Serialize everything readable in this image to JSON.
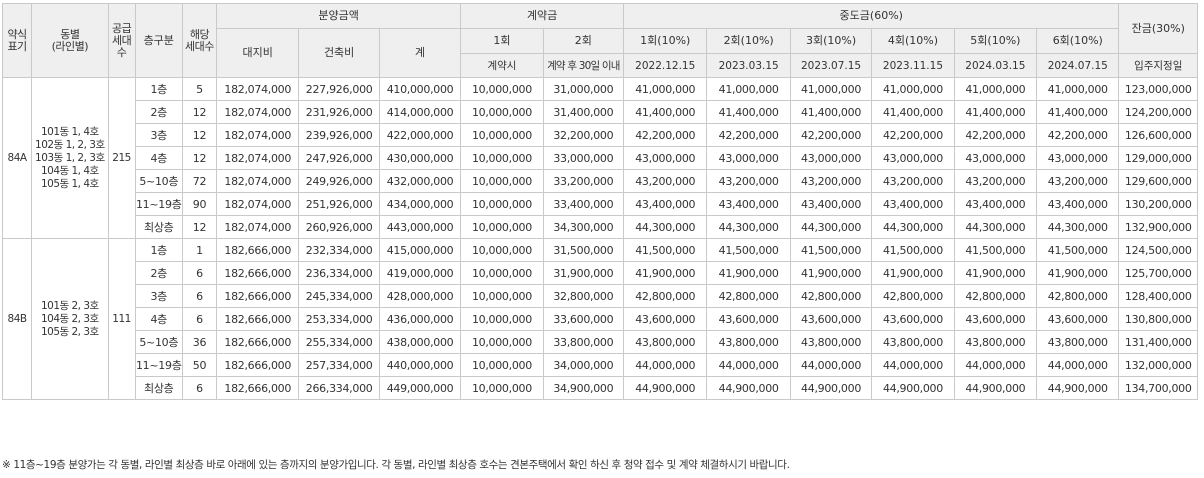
{
  "headers": {
    "type": "약식\n표기",
    "dong": "동별\n(라인별)",
    "supply_units": "공급\n세대\n수",
    "floor": "층구분",
    "applicable_units": "해당\n세대수",
    "sale_price": "분양금액",
    "land": "대지비",
    "building": "건축비",
    "total": "계",
    "contract": "계약금",
    "c1": "1회",
    "c2": "2회",
    "c1_date": "계약시",
    "c2_date": "계약 후 30일 이내",
    "interim": "중도금(60%)",
    "i1": "1회(10%)",
    "i2": "2회(10%)",
    "i3": "3회(10%)",
    "i4": "4회(10%)",
    "i5": "5회(10%)",
    "i6": "6회(10%)",
    "i1_date": "2022.12.15",
    "i2_date": "2023.03.15",
    "i3_date": "2023.07.15",
    "i4_date": "2023.11.15",
    "i5_date": "2024.03.15",
    "i6_date": "2024.07.15",
    "balance": "잔금(30%)",
    "balance_date": "입주지정일"
  },
  "groups": [
    {
      "type": "84A",
      "dong": "101동 1, 4호\n102동 1, 2, 3호\n103동 1, 2, 3호\n104동 1, 4호\n105동 1, 4호",
      "supply_units": "215",
      "rows": [
        {
          "floor": "1층",
          "units": "5",
          "land": "182,074,000",
          "building": "227,926,000",
          "total": "410,000,000",
          "c1": "10,000,000",
          "c2": "31,000,000",
          "i": [
            "41,000,000",
            "41,000,000",
            "41,000,000",
            "41,000,000",
            "41,000,000",
            "41,000,000"
          ],
          "balance": "123,000,000"
        },
        {
          "floor": "2층",
          "units": "12",
          "land": "182,074,000",
          "building": "231,926,000",
          "total": "414,000,000",
          "c1": "10,000,000",
          "c2": "31,400,000",
          "i": [
            "41,400,000",
            "41,400,000",
            "41,400,000",
            "41,400,000",
            "41,400,000",
            "41,400,000"
          ],
          "balance": "124,200,000"
        },
        {
          "floor": "3층",
          "units": "12",
          "land": "182,074,000",
          "building": "239,926,000",
          "total": "422,000,000",
          "c1": "10,000,000",
          "c2": "32,200,000",
          "i": [
            "42,200,000",
            "42,200,000",
            "42,200,000",
            "42,200,000",
            "42,200,000",
            "42,200,000"
          ],
          "balance": "126,600,000"
        },
        {
          "floor": "4층",
          "units": "12",
          "land": "182,074,000",
          "building": "247,926,000",
          "total": "430,000,000",
          "c1": "10,000,000",
          "c2": "33,000,000",
          "i": [
            "43,000,000",
            "43,000,000",
            "43,000,000",
            "43,000,000",
            "43,000,000",
            "43,000,000"
          ],
          "balance": "129,000,000"
        },
        {
          "floor": "5~10층",
          "units": "72",
          "land": "182,074,000",
          "building": "249,926,000",
          "total": "432,000,000",
          "c1": "10,000,000",
          "c2": "33,200,000",
          "i": [
            "43,200,000",
            "43,200,000",
            "43,200,000",
            "43,200,000",
            "43,200,000",
            "43,200,000"
          ],
          "balance": "129,600,000"
        },
        {
          "floor": "11~19층",
          "units": "90",
          "land": "182,074,000",
          "building": "251,926,000",
          "total": "434,000,000",
          "c1": "10,000,000",
          "c2": "33,400,000",
          "i": [
            "43,400,000",
            "43,400,000",
            "43,400,000",
            "43,400,000",
            "43,400,000",
            "43,400,000"
          ],
          "balance": "130,200,000"
        },
        {
          "floor": "최상층",
          "units": "12",
          "land": "182,074,000",
          "building": "260,926,000",
          "total": "443,000,000",
          "c1": "10,000,000",
          "c2": "34,300,000",
          "i": [
            "44,300,000",
            "44,300,000",
            "44,300,000",
            "44,300,000",
            "44,300,000",
            "44,300,000"
          ],
          "balance": "132,900,000"
        }
      ]
    },
    {
      "type": "84B",
      "dong": "101동 2, 3호\n104동 2, 3호\n105동 2, 3호",
      "supply_units": "111",
      "rows": [
        {
          "floor": "1층",
          "units": "1",
          "land": "182,666,000",
          "building": "232,334,000",
          "total": "415,000,000",
          "c1": "10,000,000",
          "c2": "31,500,000",
          "i": [
            "41,500,000",
            "41,500,000",
            "41,500,000",
            "41,500,000",
            "41,500,000",
            "41,500,000"
          ],
          "balance": "124,500,000"
        },
        {
          "floor": "2층",
          "units": "6",
          "land": "182,666,000",
          "building": "236,334,000",
          "total": "419,000,000",
          "c1": "10,000,000",
          "c2": "31,900,000",
          "i": [
            "41,900,000",
            "41,900,000",
            "41,900,000",
            "41,900,000",
            "41,900,000",
            "41,900,000"
          ],
          "balance": "125,700,000"
        },
        {
          "floor": "3층",
          "units": "6",
          "land": "182,666,000",
          "building": "245,334,000",
          "total": "428,000,000",
          "c1": "10,000,000",
          "c2": "32,800,000",
          "i": [
            "42,800,000",
            "42,800,000",
            "42,800,000",
            "42,800,000",
            "42,800,000",
            "42,800,000"
          ],
          "balance": "128,400,000"
        },
        {
          "floor": "4층",
          "units": "6",
          "land": "182,666,000",
          "building": "253,334,000",
          "total": "436,000,000",
          "c1": "10,000,000",
          "c2": "33,600,000",
          "i": [
            "43,600,000",
            "43,600,000",
            "43,600,000",
            "43,600,000",
            "43,600,000",
            "43,600,000"
          ],
          "balance": "130,800,000"
        },
        {
          "floor": "5~10층",
          "units": "36",
          "land": "182,666,000",
          "building": "255,334,000",
          "total": "438,000,000",
          "c1": "10,000,000",
          "c2": "33,800,000",
          "i": [
            "43,800,000",
            "43,800,000",
            "43,800,000",
            "43,800,000",
            "43,800,000",
            "43,800,000"
          ],
          "balance": "131,400,000"
        },
        {
          "floor": "11~19층",
          "units": "50",
          "land": "182,666,000",
          "building": "257,334,000",
          "total": "440,000,000",
          "c1": "10,000,000",
          "c2": "34,000,000",
          "i": [
            "44,000,000",
            "44,000,000",
            "44,000,000",
            "44,000,000",
            "44,000,000",
            "44,000,000"
          ],
          "balance": "132,000,000"
        },
        {
          "floor": "최상층",
          "units": "6",
          "land": "182,666,000",
          "building": "266,334,000",
          "total": "449,000,000",
          "c1": "10,000,000",
          "c2": "34,900,000",
          "i": [
            "44,900,000",
            "44,900,000",
            "44,900,000",
            "44,900,000",
            "44,900,000",
            "44,900,000"
          ],
          "balance": "134,700,000"
        }
      ]
    }
  ],
  "footnote": "※ 11층~19층 분양가는 각 동별, 라인별 최상층 바로 아래에 있는 층까지의 분양가입니다. 각 동별, 라인별 최상층 호수는 견본주택에서 확인 하신 후 청약 접수 및 계약 체결하시기 바랍니다."
}
